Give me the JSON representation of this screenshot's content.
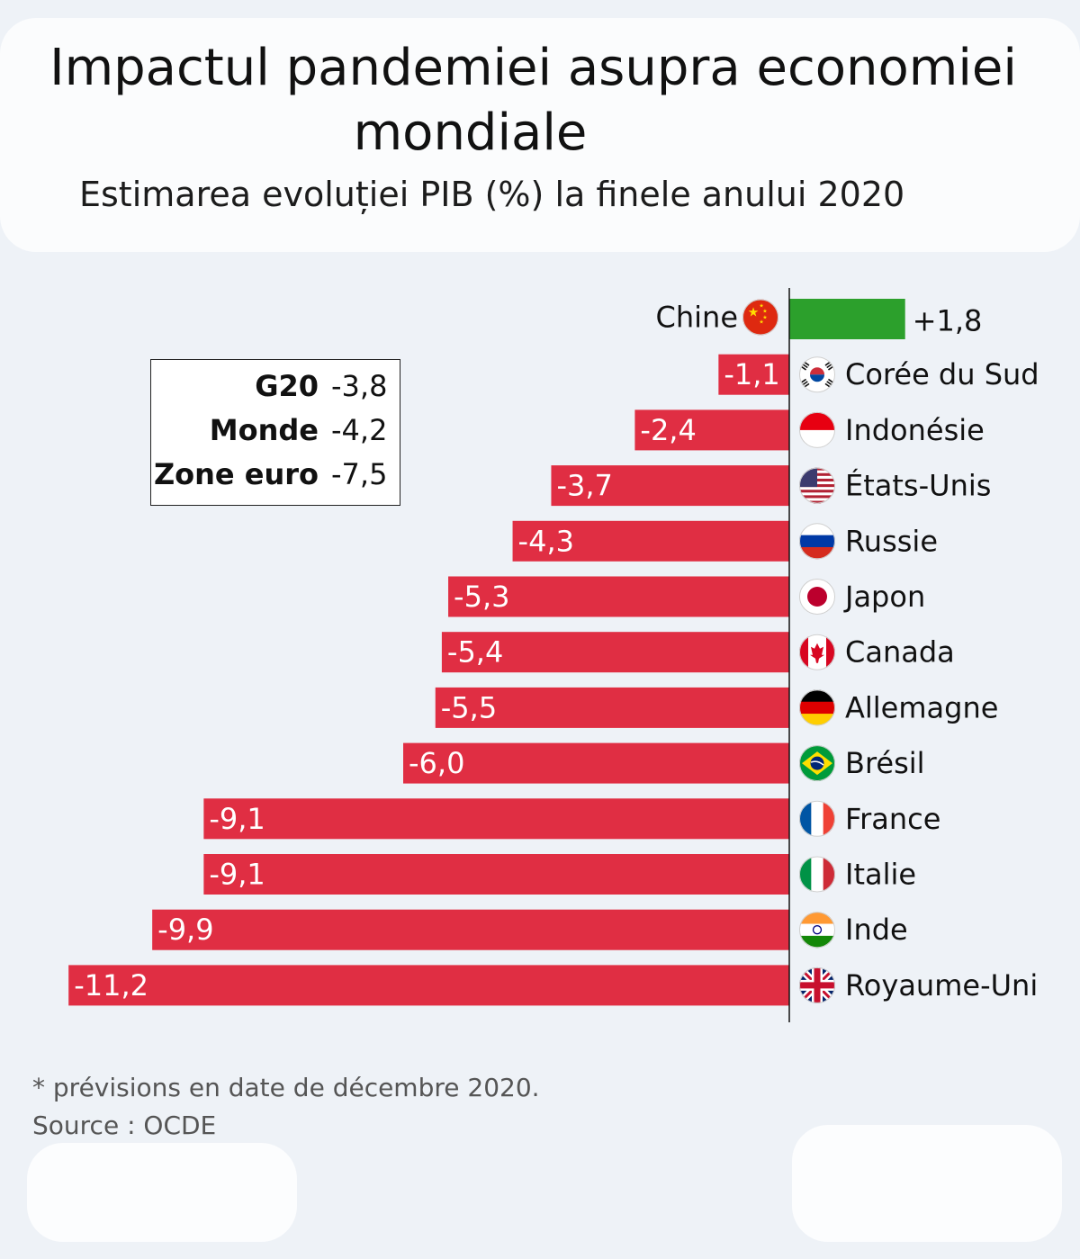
{
  "title_line1": "Impactul pandemiei asupra economiei",
  "title_line2": "mondiale",
  "subtitle": "Estimarea evoluției PIB (%) la finele anului 2020",
  "summary": [
    {
      "label": "G20",
      "value": "-3,8"
    },
    {
      "label": "Monde",
      "value": "-4,2"
    },
    {
      "label": "Zone euro",
      "value": "-7,5"
    }
  ],
  "footnote": "* prévisions en date de décembre 2020.",
  "source": "Source : OCDE",
  "colors": {
    "positive": "#2ca02c",
    "negative": "#e02e43"
  },
  "chart_data": {
    "type": "bar",
    "orientation": "horizontal",
    "categories": [
      "Chine",
      "Corée du Sud",
      "Indonésie",
      "États-Unis",
      "Russie",
      "Japon",
      "Canada",
      "Allemagne",
      "Brésil",
      "France",
      "Italie",
      "Inde",
      "Royaume-Uni"
    ],
    "values": [
      1.8,
      -1.1,
      -2.4,
      -3.7,
      -4.3,
      -5.3,
      -5.4,
      -5.5,
      -6.0,
      -9.1,
      -9.1,
      -9.9,
      -11.2
    ],
    "labels": [
      "+1,8",
      "-1,1",
      "-2,4",
      "-3,7",
      "-4,3",
      "-5,3",
      "-5,4",
      "-5,5",
      "-6,0",
      "-9,1",
      "-9,1",
      "-9,9",
      "-11,2"
    ],
    "flags": [
      "flag-china-icon",
      "flag-south-korea-icon",
      "flag-indonesia-icon",
      "flag-usa-icon",
      "flag-russia-icon",
      "flag-japan-icon",
      "flag-canada-icon",
      "flag-germany-icon",
      "flag-brazil-icon",
      "flag-france-icon",
      "flag-italy-icon",
      "flag-india-icon",
      "flag-uk-icon"
    ]
  }
}
